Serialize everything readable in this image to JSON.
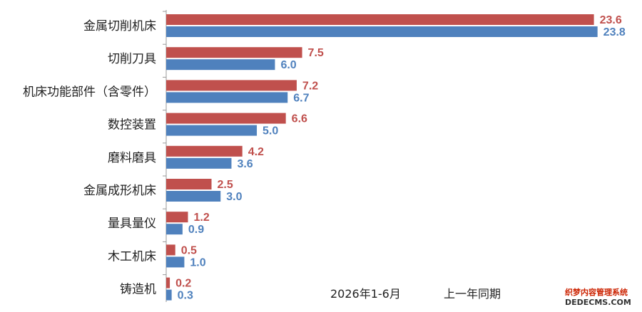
{
  "chart_data": {
    "type": "bar",
    "orientation": "horizontal",
    "categories": [
      "金属切削机床",
      "切削刀具",
      "机床功能部件（含零件）",
      "数控装置",
      "磨料磨具",
      "金属成形机床",
      "量具量仪",
      "木工机床",
      "铸造机"
    ],
    "series": [
      {
        "name": "2026年1-6月",
        "color": "#c0504d",
        "values": [
          23.6,
          7.5,
          7.2,
          6.6,
          4.2,
          2.5,
          1.2,
          0.5,
          0.2
        ]
      },
      {
        "name": "上一年同期",
        "color": "#4f81bd",
        "values": [
          23.8,
          6.0,
          6.7,
          5.0,
          3.6,
          3.0,
          0.9,
          1.0,
          0.3
        ]
      }
    ],
    "xlim": [
      0,
      24.6
    ],
    "legend_position": "bottom-right",
    "grid": false,
    "title": "",
    "xlabel": "",
    "ylabel": ""
  },
  "watermark": {
    "line1": "织梦内容管理系统",
    "line2": "DEDECMS.COM",
    "color1": "#cc2200",
    "color2": "#333333"
  }
}
